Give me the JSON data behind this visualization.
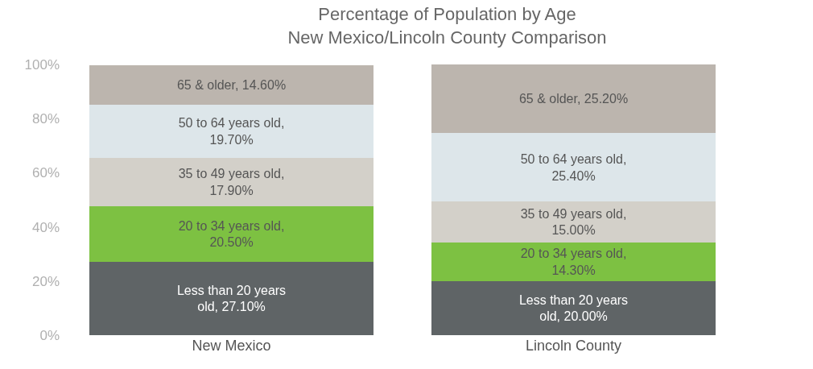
{
  "chart_data": {
    "type": "bar",
    "stacked": true,
    "title": "Percentage of Population by Age",
    "subtitle": "New Mexico/Lincoln County Comparison",
    "categories": [
      "New Mexico",
      "Lincoln County"
    ],
    "series": [
      {
        "color": "#5f6466",
        "values": [
          27.1,
          20.0
        ],
        "value_labels": [
          "Less than 20 years old, 27.10%",
          "Less than 20 years old, 20.00%"
        ]
      },
      {
        "color": "#7dc142",
        "values": [
          20.5,
          14.3
        ],
        "value_labels": [
          "20 to 34 years old, 20.50%",
          "20 to 34 years old, 14.30%"
        ]
      },
      {
        "color": "#d3d0c9",
        "values": [
          17.9,
          15.0
        ],
        "value_labels": [
          "35 to 49 years old, 17.90%",
          "35 to 49 years old, 15.00%"
        ]
      },
      {
        "color": "#dde6ea",
        "values": [
          19.7,
          25.4
        ],
        "value_labels": [
          "50 to 64 years old, 19.70%",
          "50 to 64 years old, 25.40%"
        ]
      },
      {
        "color": "#bcb5ae",
        "values": [
          14.6,
          25.2
        ],
        "value_labels": [
          "65 & older, 14.60%",
          "65 & older, 25.20%"
        ]
      }
    ],
    "ylim": [
      0,
      100
    ],
    "yticks": [
      {
        "value": 0,
        "label": "0%"
      },
      {
        "value": 20,
        "label": "20%"
      },
      {
        "value": 40,
        "label": "40%"
      },
      {
        "value": 60,
        "label": "60%"
      },
      {
        "value": 80,
        "label": "80%"
      },
      {
        "value": 100,
        "label": "100%"
      }
    ],
    "grid": false,
    "legend": false
  }
}
